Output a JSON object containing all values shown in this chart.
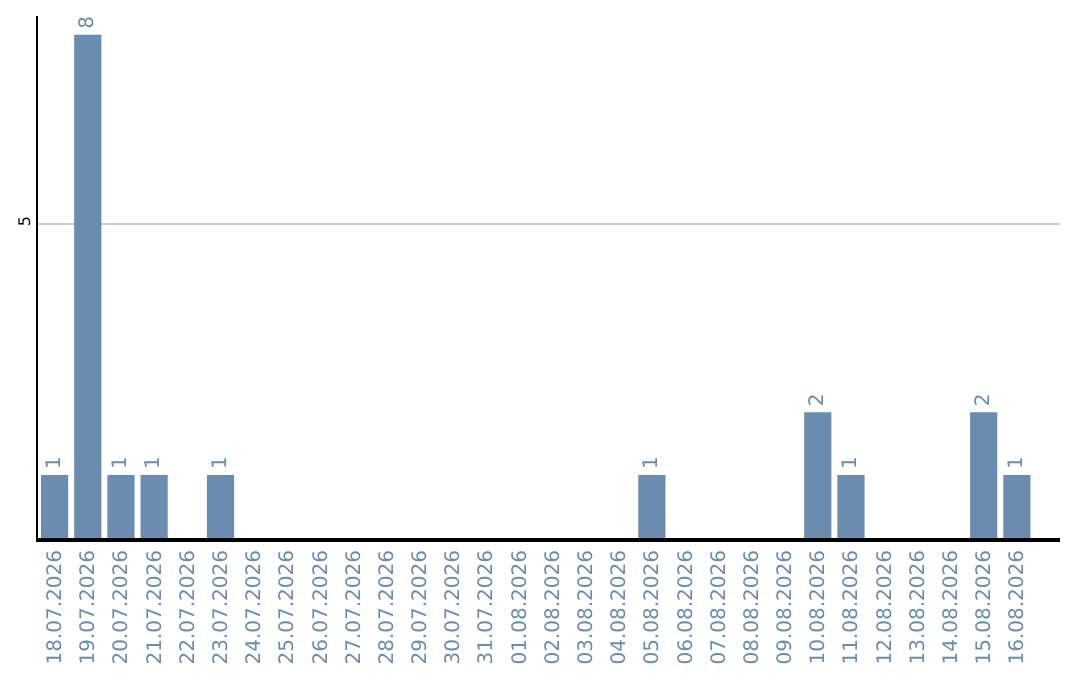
{
  "chart_data": {
    "type": "bar",
    "categories": [
      "18.07.2026",
      "19.07.2026",
      "20.07.2026",
      "21.07.2026",
      "22.07.2026",
      "23.07.2026",
      "24.07.2026",
      "25.07.2026",
      "26.07.2026",
      "27.07.2026",
      "28.07.2026",
      "29.07.2026",
      "30.07.2026",
      "31.07.2026",
      "01.08.2026",
      "02.08.2026",
      "03.08.2026",
      "04.08.2026",
      "05.08.2026",
      "06.08.2026",
      "07.08.2026",
      "08.08.2026",
      "09.08.2026",
      "10.08.2026",
      "11.08.2026",
      "12.08.2026",
      "13.08.2026",
      "14.08.2026",
      "15.08.2026",
      "16.08.2026"
    ],
    "values": [
      1,
      8,
      1,
      1,
      0,
      1,
      0,
      0,
      0,
      0,
      0,
      0,
      0,
      0,
      0,
      0,
      0,
      0,
      1,
      0,
      0,
      0,
      0,
      2,
      1,
      0,
      0,
      0,
      2,
      1
    ],
    "value_labels": [
      "1",
      "8",
      "1",
      "1",
      null,
      "1",
      null,
      null,
      null,
      null,
      null,
      null,
      null,
      null,
      null,
      null,
      null,
      null,
      "1",
      null,
      null,
      null,
      null,
      "2",
      "1",
      null,
      null,
      null,
      "2",
      "1"
    ],
    "color": "#6a8caf",
    "ylim": [
      0,
      8.3
    ],
    "yticks": [
      5
    ],
    "grid": "y",
    "legend": false
  }
}
